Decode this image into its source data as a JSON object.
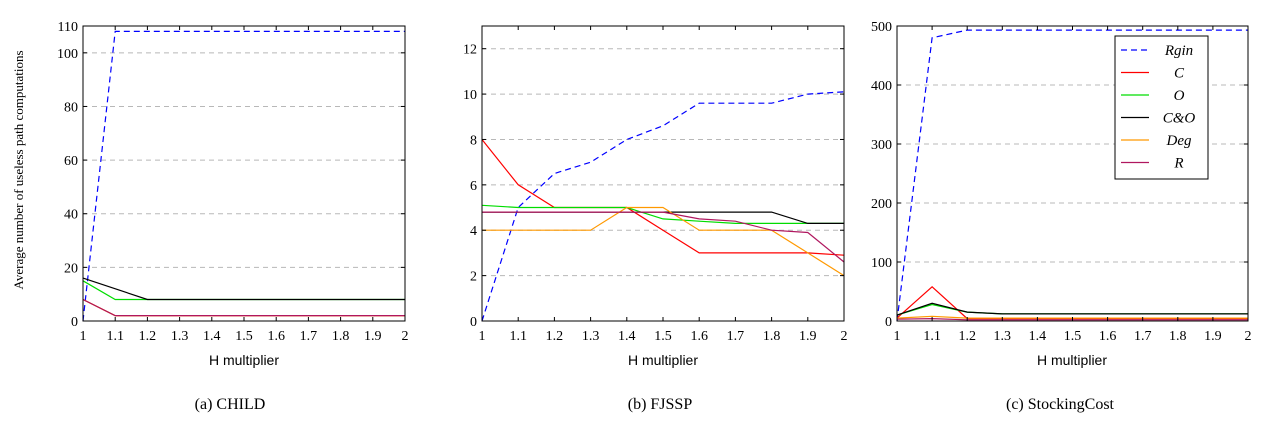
{
  "figure": {
    "y_axis_label": "Average number of useless path computations"
  },
  "chart_data": [
    {
      "type": "line",
      "caption": "(a) CHILD",
      "xlabel": "H multiplier",
      "ylabel": "Average number of useless path computations",
      "xlim": [
        1,
        2
      ],
      "ylim": [
        0,
        110
      ],
      "xticks": [
        1,
        1.1,
        1.2,
        1.3,
        1.4,
        1.5,
        1.6,
        1.7,
        1.8,
        1.9,
        2
      ],
      "yticks": [
        0,
        20,
        40,
        60,
        80,
        100,
        110
      ],
      "grid": "horizontal-dashed",
      "series": [
        {
          "id": "Rgin",
          "color": "#0000ff",
          "dash": "dashed",
          "x": [
            1,
            1.1,
            2
          ],
          "y": [
            0,
            108,
            108
          ]
        },
        {
          "id": "C",
          "color": "#ff0000",
          "dash": "solid",
          "x": [
            1,
            1.1,
            2
          ],
          "y": [
            8,
            2,
            2
          ]
        },
        {
          "id": "O",
          "color": "#00dd00",
          "dash": "solid",
          "x": [
            1,
            1.1,
            1.2,
            2
          ],
          "y": [
            15,
            8,
            8,
            8
          ]
        },
        {
          "id": "C&O",
          "color": "#000000",
          "dash": "solid",
          "x": [
            1,
            1.2,
            2
          ],
          "y": [
            16,
            8,
            8
          ]
        },
        {
          "id": "Deg",
          "color": "#ff9900",
          "dash": "solid",
          "x": [
            1,
            1.1,
            2
          ],
          "y": [
            8,
            2,
            2
          ]
        },
        {
          "id": "R",
          "color": "#b0175f",
          "dash": "solid",
          "x": [
            1,
            1.1,
            2
          ],
          "y": [
            8,
            2,
            2
          ]
        }
      ]
    },
    {
      "type": "line",
      "caption": "(b) FJSSP",
      "xlabel": "H multiplier",
      "xlim": [
        1,
        2
      ],
      "ylim": [
        0,
        13
      ],
      "xticks": [
        1,
        1.1,
        1.2,
        1.3,
        1.4,
        1.5,
        1.6,
        1.7,
        1.8,
        1.9,
        2
      ],
      "yticks": [
        0,
        2,
        4,
        6,
        8,
        10,
        12
      ],
      "grid": "horizontal-dashed",
      "series": [
        {
          "id": "Rgin",
          "color": "#0000ff",
          "dash": "dashed",
          "x": [
            1,
            1.1,
            1.2,
            1.3,
            1.4,
            1.5,
            1.6,
            1.7,
            1.8,
            1.9,
            2
          ],
          "y": [
            0,
            5,
            6.5,
            7,
            8,
            8.6,
            9.6,
            9.6,
            9.6,
            10,
            10.1
          ]
        },
        {
          "id": "C",
          "color": "#ff0000",
          "dash": "solid",
          "x": [
            1,
            1.1,
            1.2,
            1.3,
            1.4,
            1.5,
            1.6,
            1.7,
            1.8,
            1.9,
            2
          ],
          "y": [
            8,
            6,
            5,
            5,
            5,
            4,
            3,
            3,
            3,
            3,
            2.9
          ]
        },
        {
          "id": "O",
          "color": "#00dd00",
          "dash": "solid",
          "x": [
            1,
            1.1,
            1.2,
            1.3,
            1.4,
            1.5,
            1.6,
            1.7,
            1.8,
            1.9,
            2
          ],
          "y": [
            5.1,
            5,
            5,
            5,
            5,
            4.5,
            4.4,
            4.3,
            4.3,
            4.3,
            4.3
          ]
        },
        {
          "id": "C&O",
          "color": "#000000",
          "dash": "solid",
          "x": [
            1,
            1.1,
            1.2,
            1.3,
            1.4,
            1.5,
            1.6,
            1.7,
            1.8,
            1.9,
            2
          ],
          "y": [
            4.8,
            4.8,
            4.8,
            4.8,
            4.8,
            4.8,
            4.8,
            4.8,
            4.8,
            4.3,
            4.3
          ]
        },
        {
          "id": "Deg",
          "color": "#ff9900",
          "dash": "solid",
          "x": [
            1,
            1.1,
            1.2,
            1.3,
            1.4,
            1.5,
            1.6,
            1.7,
            1.8,
            1.9,
            2
          ],
          "y": [
            4,
            4,
            4,
            4,
            5,
            5,
            4,
            4,
            4,
            3,
            2
          ]
        },
        {
          "id": "R",
          "color": "#b0175f",
          "dash": "solid",
          "x": [
            1,
            1.1,
            1.2,
            1.3,
            1.4,
            1.5,
            1.6,
            1.7,
            1.8,
            1.9,
            2
          ],
          "y": [
            4.8,
            4.8,
            4.8,
            4.8,
            4.8,
            4.8,
            4.5,
            4.4,
            4,
            3.9,
            2.6
          ]
        }
      ]
    },
    {
      "type": "line",
      "caption": "(c) StockingCost",
      "xlabel": "H multiplier",
      "xlim": [
        1,
        2
      ],
      "ylim": [
        0,
        500
      ],
      "xticks": [
        1,
        1.1,
        1.2,
        1.3,
        1.4,
        1.5,
        1.6,
        1.7,
        1.8,
        1.9,
        2
      ],
      "yticks": [
        0,
        100,
        200,
        300,
        400,
        500
      ],
      "grid": "horizontal-dashed",
      "legend": {
        "position": "top-right",
        "entries": [
          "Rgin",
          "C",
          "O",
          "C&O",
          "Deg",
          "R"
        ]
      },
      "series": [
        {
          "id": "Rgin",
          "color": "#0000ff",
          "dash": "dashed",
          "x": [
            1,
            1.1,
            1.2,
            2
          ],
          "y": [
            0,
            480,
            493,
            493
          ]
        },
        {
          "id": "C",
          "color": "#ff0000",
          "dash": "solid",
          "x": [
            1,
            1.1,
            1.2,
            2
          ],
          "y": [
            5,
            58,
            4,
            4
          ]
        },
        {
          "id": "O",
          "color": "#00dd00",
          "dash": "solid",
          "x": [
            1,
            1.1,
            1.2,
            1.3,
            2
          ],
          "y": [
            10,
            28,
            15,
            12,
            12
          ]
        },
        {
          "id": "C&O",
          "color": "#000000",
          "dash": "solid",
          "x": [
            1,
            1.1,
            1.2,
            1.3,
            2
          ],
          "y": [
            10,
            30,
            15,
            12,
            12
          ]
        },
        {
          "id": "Deg",
          "color": "#ff9900",
          "dash": "solid",
          "x": [
            1,
            1.1,
            1.2,
            2
          ],
          "y": [
            5,
            8,
            5,
            5
          ]
        },
        {
          "id": "R",
          "color": "#b0175f",
          "dash": "solid",
          "x": [
            1,
            1.1,
            1.2,
            2
          ],
          "y": [
            3,
            4,
            2,
            2
          ]
        }
      ]
    }
  ],
  "legend_labels": {
    "Rgin": "Rgin",
    "C": "C",
    "O": "O",
    "C&O": "C&O",
    "Deg": "Deg",
    "R": "R"
  }
}
